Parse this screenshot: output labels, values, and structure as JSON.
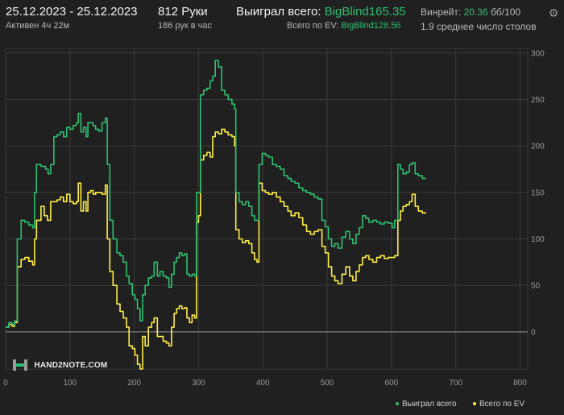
{
  "header": {
    "date_range": "25.12.2023 - 25.12.2023",
    "active_time": "Активен 4ч 22м",
    "hands": "812 Руки",
    "hands_per_hour": "186 рук в час",
    "won_total_label": "Выиграл всего:",
    "won_total_value": "BigBlind165.35",
    "ev_total_label": "Всего по EV:",
    "ev_total_value": "BigBlind128.56",
    "winrate_label": "Винрейт:",
    "winrate_value": "20.36",
    "winrate_unit": "бб/100",
    "avg_tables": "1.9 среднее число столов"
  },
  "logo": {
    "text": "HAND2NOTE.COM",
    "icon": "hand2note-logo-icon"
  },
  "settings": {
    "icon": "gear-icon"
  },
  "colors": {
    "won": "#2fbf71",
    "ev": "#ffee44",
    "grid": "#3a3a3a",
    "zero": "#9a9a9a",
    "axis_text": "#9a9a9a",
    "background": "#202020"
  },
  "chart_data": {
    "type": "line",
    "xlim": [
      0,
      812
    ],
    "ylim": [
      -40,
      305
    ],
    "x_ticks": [
      0,
      100,
      200,
      300,
      400,
      500,
      600,
      700,
      800
    ],
    "y_ticks": [
      0,
      50,
      100,
      150,
      200,
      250,
      300
    ],
    "y_axis_position": "right",
    "grid": true,
    "legend_position": "bottom-right",
    "series": [
      {
        "name": "Выиграл всего",
        "color": "#2fbf71",
        "points": [
          [
            0,
            5
          ],
          [
            5,
            10
          ],
          [
            10,
            8
          ],
          [
            14,
            12
          ],
          [
            18,
            100
          ],
          [
            24,
            120
          ],
          [
            30,
            118
          ],
          [
            36,
            115
          ],
          [
            42,
            112
          ],
          [
            45,
            150
          ],
          [
            48,
            180
          ],
          [
            55,
            178
          ],
          [
            62,
            175
          ],
          [
            66,
            170
          ],
          [
            70,
            180
          ],
          [
            75,
            210
          ],
          [
            80,
            212
          ],
          [
            85,
            215
          ],
          [
            90,
            210
          ],
          [
            95,
            220
          ],
          [
            100,
            218
          ],
          [
            105,
            222
          ],
          [
            110,
            225
          ],
          [
            113,
            235
          ],
          [
            117,
            215
          ],
          [
            121,
            220
          ],
          [
            125,
            210
          ],
          [
            128,
            225
          ],
          [
            132,
            225
          ],
          [
            136,
            222
          ],
          [
            140,
            218
          ],
          [
            145,
            216
          ],
          [
            150,
            225
          ],
          [
            155,
            230
          ],
          [
            158,
            180
          ],
          [
            162,
            120
          ],
          [
            167,
            100
          ],
          [
            173,
            85
          ],
          [
            178,
            82
          ],
          [
            183,
            75
          ],
          [
            188,
            60
          ],
          [
            192,
            52
          ],
          [
            197,
            40
          ],
          [
            201,
            35
          ],
          [
            205,
            25
          ],
          [
            209,
            12
          ],
          [
            213,
            40
          ],
          [
            217,
            50
          ],
          [
            222,
            58
          ],
          [
            227,
            60
          ],
          [
            231,
            75
          ],
          [
            236,
            60
          ],
          [
            240,
            65
          ],
          [
            245,
            60
          ],
          [
            250,
            58
          ],
          [
            254,
            48
          ],
          [
            258,
            62
          ],
          [
            262,
            75
          ],
          [
            266,
            80
          ],
          [
            270,
            85
          ],
          [
            274,
            82
          ],
          [
            278,
            84
          ],
          [
            282,
            62
          ],
          [
            286,
            60
          ],
          [
            290,
            62
          ],
          [
            294,
            60
          ],
          [
            297,
            150
          ],
          [
            300,
            150
          ],
          [
            303,
            255
          ],
          [
            308,
            260
          ],
          [
            313,
            262
          ],
          [
            318,
            270
          ],
          [
            322,
            275
          ],
          [
            326,
            292
          ],
          [
            331,
            285
          ],
          [
            336,
            260
          ],
          [
            341,
            255
          ],
          [
            346,
            250
          ],
          [
            352,
            245
          ],
          [
            356,
            240
          ],
          [
            358,
            150
          ],
          [
            363,
            140
          ],
          [
            368,
            137
          ],
          [
            373,
            140
          ],
          [
            378,
            135
          ],
          [
            383,
            125
          ],
          [
            387,
            120
          ],
          [
            391,
            120
          ],
          [
            394,
            180
          ],
          [
            399,
            192
          ],
          [
            404,
            190
          ],
          [
            409,
            188
          ],
          [
            415,
            180
          ],
          [
            421,
            178
          ],
          [
            427,
            175
          ],
          [
            433,
            168
          ],
          [
            439,
            165
          ],
          [
            444,
            162
          ],
          [
            450,
            160
          ],
          [
            456,
            155
          ],
          [
            462,
            152
          ],
          [
            468,
            150
          ],
          [
            474,
            148
          ],
          [
            480,
            145
          ],
          [
            486,
            143
          ],
          [
            492,
            120
          ],
          [
            497,
            113
          ],
          [
            502,
            100
          ],
          [
            507,
            92
          ],
          [
            512,
            95
          ],
          [
            517,
            90
          ],
          [
            523,
            102
          ],
          [
            529,
            108
          ],
          [
            535,
            100
          ],
          [
            540,
            95
          ],
          [
            545,
            105
          ],
          [
            550,
            112
          ],
          [
            555,
            125
          ],
          [
            560,
            122
          ],
          [
            565,
            118
          ],
          [
            571,
            120
          ],
          [
            577,
            118
          ],
          [
            583,
            116
          ],
          [
            589,
            118
          ],
          [
            595,
            117
          ],
          [
            601,
            112
          ],
          [
            605,
            120
          ],
          [
            610,
            180
          ],
          [
            614,
            175
          ],
          [
            618,
            170
          ],
          [
            623,
            172
          ],
          [
            628,
            180
          ],
          [
            632,
            182
          ],
          [
            637,
            170
          ],
          [
            642,
            168
          ],
          [
            648,
            165
          ],
          [
            654,
            165
          ]
        ]
      },
      {
        "name": "Всего по EV",
        "color": "#ffee44",
        "points": [
          [
            0,
            5
          ],
          [
            5,
            8
          ],
          [
            10,
            6
          ],
          [
            14,
            10
          ],
          [
            18,
            70
          ],
          [
            24,
            78
          ],
          [
            30,
            80
          ],
          [
            36,
            76
          ],
          [
            42,
            72
          ],
          [
            45,
            100
          ],
          [
            48,
            120
          ],
          [
            55,
            135
          ],
          [
            60,
            125
          ],
          [
            65,
            120
          ],
          [
            70,
            140
          ],
          [
            75,
            140
          ],
          [
            80,
            142
          ],
          [
            85,
            145
          ],
          [
            90,
            140
          ],
          [
            95,
            148
          ],
          [
            100,
            140
          ],
          [
            105,
            138
          ],
          [
            110,
            140
          ],
          [
            113,
            160
          ],
          [
            117,
            130
          ],
          [
            121,
            140
          ],
          [
            125,
            130
          ],
          [
            128,
            150
          ],
          [
            132,
            152
          ],
          [
            136,
            148
          ],
          [
            140,
            150
          ],
          [
            145,
            150
          ],
          [
            150,
            148
          ],
          [
            155,
            158
          ],
          [
            158,
            100
          ],
          [
            162,
            65
          ],
          [
            167,
            50
          ],
          [
            173,
            30
          ],
          [
            178,
            22
          ],
          [
            183,
            15
          ],
          [
            188,
            5
          ],
          [
            192,
            -15
          ],
          [
            197,
            -18
          ],
          [
            201,
            -25
          ],
          [
            205,
            -35
          ],
          [
            209,
            -40
          ],
          [
            213,
            -5
          ],
          [
            217,
            -15
          ],
          [
            222,
            5
          ],
          [
            227,
            10
          ],
          [
            231,
            15
          ],
          [
            236,
            -5
          ],
          [
            240,
            -5
          ],
          [
            245,
            -10
          ],
          [
            250,
            -12
          ],
          [
            254,
            -15
          ],
          [
            258,
            5
          ],
          [
            262,
            20
          ],
          [
            266,
            25
          ],
          [
            270,
            28
          ],
          [
            274,
            25
          ],
          [
            278,
            26
          ],
          [
            282,
            15
          ],
          [
            286,
            10
          ],
          [
            290,
            18
          ],
          [
            294,
            15
          ],
          [
            297,
            118
          ],
          [
            300,
            125
          ],
          [
            303,
            185
          ],
          [
            308,
            190
          ],
          [
            313,
            193
          ],
          [
            318,
            188
          ],
          [
            322,
            210
          ],
          [
            326,
            215
          ],
          [
            331,
            213
          ],
          [
            336,
            218
          ],
          [
            341,
            215
          ],
          [
            346,
            212
          ],
          [
            352,
            210
          ],
          [
            356,
            200
          ],
          [
            358,
            110
          ],
          [
            363,
            100
          ],
          [
            368,
            96
          ],
          [
            373,
            98
          ],
          [
            378,
            95
          ],
          [
            383,
            85
          ],
          [
            387,
            78
          ],
          [
            391,
            75
          ],
          [
            394,
            160
          ],
          [
            399,
            152
          ],
          [
            404,
            150
          ],
          [
            409,
            148
          ],
          [
            415,
            150
          ],
          [
            421,
            145
          ],
          [
            427,
            140
          ],
          [
            433,
            135
          ],
          [
            439,
            130
          ],
          [
            444,
            125
          ],
          [
            450,
            128
          ],
          [
            456,
            123
          ],
          [
            462,
            115
          ],
          [
            468,
            108
          ],
          [
            474,
            105
          ],
          [
            480,
            108
          ],
          [
            486,
            110
          ],
          [
            492,
            92
          ],
          [
            497,
            85
          ],
          [
            502,
            70
          ],
          [
            507,
            60
          ],
          [
            512,
            55
          ],
          [
            517,
            52
          ],
          [
            523,
            62
          ],
          [
            529,
            70
          ],
          [
            535,
            60
          ],
          [
            540,
            55
          ],
          [
            545,
            65
          ],
          [
            550,
            72
          ],
          [
            555,
            80
          ],
          [
            560,
            82
          ],
          [
            565,
            78
          ],
          [
            571,
            75
          ],
          [
            577,
            80
          ],
          [
            583,
            82
          ],
          [
            589,
            79
          ],
          [
            595,
            80
          ],
          [
            601,
            80
          ],
          [
            605,
            82
          ],
          [
            610,
            120
          ],
          [
            614,
            130
          ],
          [
            618,
            135
          ],
          [
            623,
            137
          ],
          [
            628,
            140
          ],
          [
            632,
            148
          ],
          [
            637,
            135
          ],
          [
            642,
            130
          ],
          [
            648,
            128
          ],
          [
            654,
            128
          ]
        ]
      }
    ]
  }
}
